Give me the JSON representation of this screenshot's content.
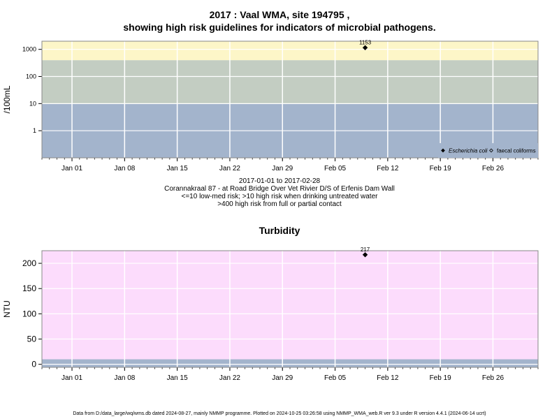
{
  "titles": {
    "main_line1": "2017 : Vaal WMA, site 194795 ,",
    "main_line2": "showing high risk guidelines for indicators of microbial pathogens.",
    "turbidity": "Turbidity"
  },
  "caption": {
    "date_range": "2017-01-01 to 2017-02-28",
    "site": "Corannakraal 87 - at Road Bridge Over Vet Rivier D/S of Erfenis Dam Wall",
    "rule1": "<=10 low-med risk; >10 high risk when drinking untreated water",
    "rule2": ">400 high risk from full or partial contact"
  },
  "footer": "Data from D:/data_large/wq/wms.db dated 2024-08-27, mainly NMMP programme. Plotted on 2024-10-25 03:26:58 using NMMP_WMA_web.R ver 9.3 under R version 4.4.1 (2024-06-14 ucrt)",
  "chart_data": [
    {
      "type": "scatter",
      "title": "2017 : Vaal WMA, site 194795 , showing high risk guidelines for indicators of microbial pathogens.",
      "ylabel": "/100mL",
      "yscale": "log",
      "xlim": [
        "2016-12-28",
        "2017-03-04"
      ],
      "ylim": [
        0.1,
        2000
      ],
      "yticks": [
        1,
        10,
        100,
        1000
      ],
      "ytick_labels": [
        "1",
        "10",
        "100",
        "1000"
      ],
      "xticks": [
        "2017-01-01",
        "2017-01-08",
        "2017-01-15",
        "2017-01-22",
        "2017-01-29",
        "2017-02-05",
        "2017-02-12",
        "2017-02-19",
        "2017-02-26"
      ],
      "xtick_labels": [
        "Jan 01",
        "Jan 08",
        "Jan 15",
        "Jan 22",
        "Jan 29",
        "Feb 05",
        "Feb 12",
        "Feb 19",
        "Feb 26"
      ],
      "bands": [
        {
          "from": 0.1,
          "to": 10,
          "color": "#a3b4cc"
        },
        {
          "from": 10,
          "to": 400,
          "color": "#c3cdc2"
        },
        {
          "from": 400,
          "to": 2000,
          "color": "#fdf6c8"
        }
      ],
      "series": [
        {
          "name": "Escherichia coli",
          "marker": "filled-diamond",
          "points": [
            {
              "x": "2017-02-09",
              "y": 1153
            }
          ]
        },
        {
          "name": "faecal coliforms",
          "marker": "open-diamond",
          "points": []
        }
      ],
      "data_labels": [
        "1153"
      ],
      "legend": "bottom-right",
      "grid": true
    },
    {
      "type": "scatter",
      "title": "Turbidity",
      "ylabel": "NTU",
      "yscale": "linear",
      "xlim": [
        "2016-12-28",
        "2017-03-04"
      ],
      "ylim": [
        -6,
        225
      ],
      "yticks": [
        0,
        50,
        100,
        150,
        200
      ],
      "ytick_labels": [
        "0",
        "50",
        "100",
        "150",
        "200"
      ],
      "xticks": [
        "2017-01-01",
        "2017-01-08",
        "2017-01-15",
        "2017-01-22",
        "2017-01-29",
        "2017-02-05",
        "2017-02-12",
        "2017-02-19",
        "2017-02-26"
      ],
      "xtick_labels": [
        "Jan 01",
        "Jan 08",
        "Jan 15",
        "Jan 22",
        "Jan 29",
        "Feb 05",
        "Feb 12",
        "Feb 19",
        "Feb 26"
      ],
      "bands": [
        {
          "from": -6,
          "to": 10,
          "color": "#a3b4cc"
        },
        {
          "from": 10,
          "to": 225,
          "color": "#fcdcfc"
        }
      ],
      "series": [
        {
          "name": "",
          "marker": "filled-diamond",
          "points": [
            {
              "x": "2017-02-09",
              "y": 217
            }
          ]
        }
      ],
      "data_labels": [
        "217"
      ],
      "grid": true
    }
  ]
}
